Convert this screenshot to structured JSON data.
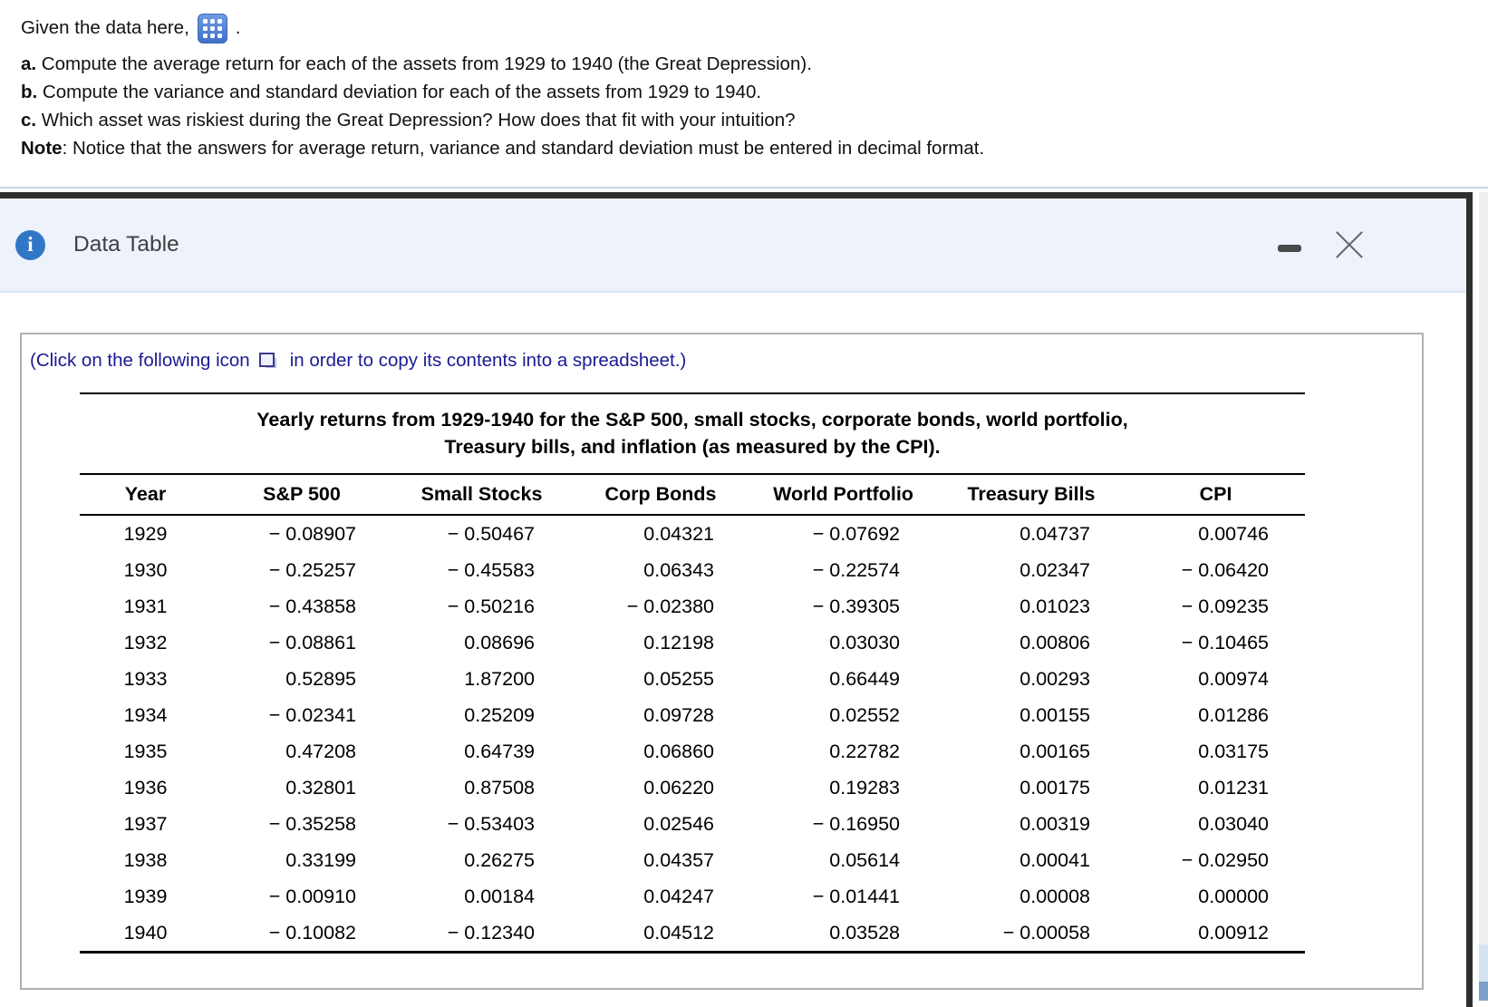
{
  "question": {
    "intro_before": "Given the data here,",
    "intro_after": ".",
    "lines": [
      {
        "label": "a.",
        "text": " Compute the average return for each of the assets from 1929 to 1940 (the Great Depression)."
      },
      {
        "label": "b.",
        "text": " Compute the variance and standard deviation for each of the assets from 1929 to 1940."
      },
      {
        "label": "c.",
        "text": " Which asset was riskiest during the Great Depression? How does that fit with your intuition?"
      },
      {
        "label": "Note",
        "text": ": Notice that the answers for average return, variance and standard deviation must be entered in decimal format."
      }
    ]
  },
  "dialog": {
    "title": "Data Table",
    "instruction_before": "(Click on the following icon",
    "instruction_after": "in order to copy its contents into a spreadsheet.)"
  },
  "icons": {
    "data_link": "spreadsheet-grid",
    "info": "i-in-blue-circle",
    "minimize": "dash",
    "close": "x",
    "copy": "overlapping-squares"
  },
  "colors": {
    "accent_blue": "#4a80d4",
    "info_blue": "#3177c7",
    "instruction_navy": "#1a1a94",
    "header_bg": "#edf2fb",
    "modal_border": "#2e2e2e",
    "panel_border": "#aeb1b6",
    "scroll_blue": "#7d9fc6"
  },
  "table": {
    "title_line1": "Yearly returns from 1929-1940 for the S&P 500, small stocks, corporate bonds, world portfolio,",
    "title_line2": "Treasury bills, and inflation (as measured by the CPI).",
    "columns": [
      "Year",
      "S&P 500",
      "Small Stocks",
      "Corp Bonds",
      "World Portfolio",
      "Treasury Bills",
      "CPI"
    ],
    "rows": [
      [
        "1929",
        "− 0.08907",
        "− 0.50467",
        "0.04321",
        "− 0.07692",
        "0.04737",
        "0.00746"
      ],
      [
        "1930",
        "− 0.25257",
        "− 0.45583",
        "0.06343",
        "− 0.22574",
        "0.02347",
        "− 0.06420"
      ],
      [
        "1931",
        "− 0.43858",
        "− 0.50216",
        "− 0.02380",
        "− 0.39305",
        "0.01023",
        "− 0.09235"
      ],
      [
        "1932",
        "− 0.08861",
        "0.08696",
        "0.12198",
        "0.03030",
        "0.00806",
        "− 0.10465"
      ],
      [
        "1933",
        "0.52895",
        "1.87200",
        "0.05255",
        "0.66449",
        "0.00293",
        "0.00974"
      ],
      [
        "1934",
        "− 0.02341",
        "0.25209",
        "0.09728",
        "0.02552",
        "0.00155",
        "0.01286"
      ],
      [
        "1935",
        "0.47208",
        "0.64739",
        "0.06860",
        "0.22782",
        "0.00165",
        "0.03175"
      ],
      [
        "1936",
        "0.32801",
        "0.87508",
        "0.06220",
        "0.19283",
        "0.00175",
        "0.01231"
      ],
      [
        "1937",
        "− 0.35258",
        "− 0.53403",
        "0.02546",
        "− 0.16950",
        "0.00319",
        "0.03040"
      ],
      [
        "1938",
        "0.33199",
        "0.26275",
        "0.04357",
        "0.05614",
        "0.00041",
        "− 0.02950"
      ],
      [
        "1939",
        "− 0.00910",
        "0.00184",
        "0.04247",
        "− 0.01441",
        "0.00008",
        "0.00000"
      ],
      [
        "1940",
        "− 0.10082",
        "− 0.12340",
        "0.04512",
        "0.03528",
        "− 0.00058",
        "0.00912"
      ]
    ]
  }
}
